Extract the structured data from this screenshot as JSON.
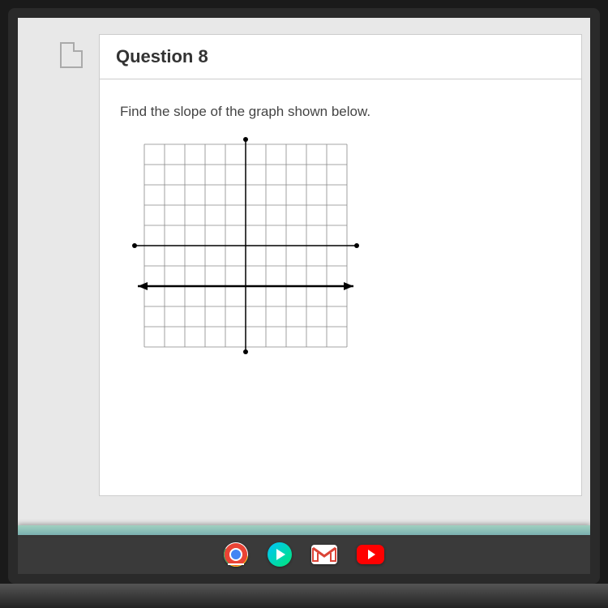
{
  "question": {
    "number": 8,
    "title": "Question 8",
    "prompt": "Find the slope of the graph shown below."
  },
  "graph": {
    "type": "line",
    "grid_count": 10,
    "cell_size": 25,
    "grid_color": "#888888",
    "axis_color": "#000000",
    "background_color": "#ffffff",
    "line_color": "#000000",
    "line_width": 2.5,
    "axis_width": 1.5,
    "x_range": [
      -5,
      5
    ],
    "y_range": [
      -5,
      5
    ],
    "plotted_line": {
      "slope": 0,
      "y_intercept": -2,
      "points": [
        [
          -5,
          -2
        ],
        [
          5,
          -2
        ]
      ]
    }
  },
  "taskbar": {
    "background_color": "#3a3a3a",
    "accent_color": "#7ab0b0",
    "icons": [
      "chrome",
      "play-store",
      "gmail",
      "youtube"
    ],
    "active": "chrome"
  }
}
